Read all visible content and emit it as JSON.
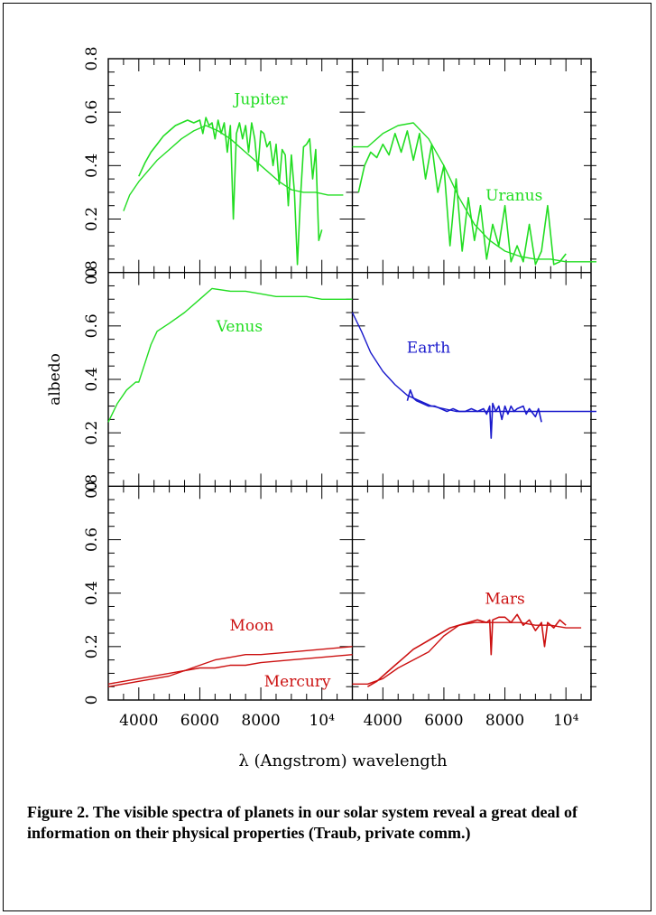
{
  "chart_data": {
    "type": "line",
    "ylabel": "albedo",
    "xlabel": "λ (Angstrom) wavelength",
    "xlim": [
      3000,
      11000
    ],
    "ylim": [
      0,
      0.8
    ],
    "x_tick_labels": [
      "4000",
      "6000",
      "8000",
      "10⁴"
    ],
    "x_ticks": [
      4000,
      6000,
      8000,
      10000
    ],
    "y_tick_labels": [
      "0",
      "0.2",
      "0.4",
      "0.6",
      "0.8"
    ],
    "y_ticks": [
      0,
      0.2,
      0.4,
      0.6,
      0.8
    ],
    "colors": {
      "green": "#22dd22",
      "blue": "#1a1acc",
      "red": "#cc1111"
    },
    "panels": [
      {
        "label": "Jupiter",
        "color": "green",
        "row": 0,
        "col": 0,
        "label_at": [
          8000,
          0.63
        ],
        "series": [
          {
            "x": [
              3500,
              3700,
              4000,
              4300,
              4600,
              5000,
              5400,
              5800,
              6200,
              6600,
              7000,
              7400,
              7800,
              8200,
              8600,
              9000,
              9400,
              9800,
              10200,
              10700
            ],
            "y": [
              0.23,
              0.29,
              0.34,
              0.38,
              0.42,
              0.46,
              0.5,
              0.53,
              0.55,
              0.53,
              0.5,
              0.46,
              0.42,
              0.38,
              0.34,
              0.31,
              0.3,
              0.3,
              0.29,
              0.29
            ]
          },
          {
            "x": [
              4000,
              4200,
              4400,
              4600,
              4800,
              5000,
              5200,
              5400,
              5600,
              5800,
              6000,
              6100,
              6200,
              6300,
              6400,
              6500,
              6600,
              6700,
              6800,
              6900,
              7000,
              7100,
              7200,
              7300,
              7400,
              7500,
              7600,
              7700,
              7800,
              7900,
              8000,
              8100,
              8200,
              8300,
              8400,
              8500,
              8600,
              8700,
              8800,
              8900,
              9000,
              9100,
              9200,
              9300,
              9400,
              9500,
              9600,
              9700,
              9800,
              9900,
              10000
            ],
            "y": [
              0.36,
              0.41,
              0.45,
              0.48,
              0.51,
              0.53,
              0.55,
              0.56,
              0.57,
              0.56,
              0.57,
              0.52,
              0.58,
              0.55,
              0.56,
              0.5,
              0.57,
              0.52,
              0.56,
              0.45,
              0.55,
              0.2,
              0.52,
              0.56,
              0.5,
              0.55,
              0.45,
              0.56,
              0.5,
              0.38,
              0.53,
              0.52,
              0.47,
              0.49,
              0.4,
              0.48,
              0.33,
              0.46,
              0.44,
              0.25,
              0.44,
              0.3,
              0.03,
              0.28,
              0.47,
              0.48,
              0.5,
              0.35,
              0.46,
              0.12,
              0.16
            ]
          }
        ]
      },
      {
        "label": "Uranus",
        "color": "green",
        "row": 0,
        "col": 1,
        "label_at": [
          8300,
          0.27
        ],
        "series": [
          {
            "x": [
              3000,
              3500,
              4000,
              4500,
              5000,
              5500,
              6000,
              6500,
              7000,
              7500,
              8000,
              8500,
              9000,
              9500,
              10000,
              10500,
              11000
            ],
            "y": [
              0.47,
              0.47,
              0.52,
              0.55,
              0.56,
              0.5,
              0.4,
              0.28,
              0.18,
              0.12,
              0.08,
              0.06,
              0.05,
              0.05,
              0.04,
              0.04,
              0.04
            ]
          },
          {
            "x": [
              3200,
              3400,
              3600,
              3800,
              4000,
              4200,
              4400,
              4600,
              4800,
              5000,
              5200,
              5400,
              5600,
              5800,
              6000,
              6200,
              6400,
              6600,
              6800,
              7000,
              7200,
              7400,
              7600,
              7800,
              8000,
              8200,
              8400,
              8600,
              8800,
              9000,
              9200,
              9400,
              9600,
              9800,
              10000
            ],
            "y": [
              0.3,
              0.4,
              0.45,
              0.43,
              0.48,
              0.44,
              0.52,
              0.45,
              0.53,
              0.42,
              0.52,
              0.35,
              0.48,
              0.3,
              0.4,
              0.1,
              0.35,
              0.08,
              0.28,
              0.12,
              0.25,
              0.05,
              0.18,
              0.1,
              0.25,
              0.04,
              0.1,
              0.04,
              0.18,
              0.03,
              0.08,
              0.25,
              0.03,
              0.04,
              0.07
            ]
          }
        ]
      },
      {
        "label": "Venus",
        "color": "green",
        "row": 1,
        "col": 0,
        "label_at": [
          7300,
          0.58
        ],
        "series": [
          {
            "x": [
              3000,
              3300,
              3600,
              3900,
              4000,
              4200,
              4400,
              4600,
              5000,
              5500,
              6000,
              6400,
              7000,
              7500,
              8000,
              8500,
              9000,
              9500,
              10000,
              11000
            ],
            "y": [
              0.24,
              0.31,
              0.36,
              0.39,
              0.39,
              0.46,
              0.53,
              0.58,
              0.61,
              0.65,
              0.7,
              0.74,
              0.73,
              0.73,
              0.72,
              0.71,
              0.71,
              0.71,
              0.7,
              0.7
            ]
          }
        ]
      },
      {
        "label": "Earth",
        "color": "blue",
        "row": 1,
        "col": 1,
        "label_at": [
          5500,
          0.5
        ],
        "series": [
          {
            "x": [
              3000,
              3300,
              3600,
              4000,
              4400,
              4800,
              5200,
              5600,
              6000,
              6400,
              6800,
              7200,
              7600,
              8000,
              8400,
              8800,
              9200,
              9600,
              10000,
              10500,
              11000
            ],
            "y": [
              0.65,
              0.58,
              0.5,
              0.43,
              0.38,
              0.34,
              0.32,
              0.3,
              0.29,
              0.28,
              0.28,
              0.28,
              0.28,
              0.28,
              0.28,
              0.28,
              0.28,
              0.28,
              0.28,
              0.28,
              0.28
            ]
          },
          {
            "x": [
              4800,
              4900,
              5000,
              5100,
              5300,
              5500,
              5700,
              5900,
              6100,
              6300,
              6500,
              6700,
              6900,
              7100,
              7300,
              7400,
              7500,
              7550,
              7600,
              7700,
              7800,
              7900,
              8000,
              8100,
              8200,
              8300,
              8400,
              8600,
              8700,
              8800,
              9000,
              9100,
              9200
            ],
            "y": [
              0.32,
              0.36,
              0.33,
              0.32,
              0.31,
              0.3,
              0.3,
              0.29,
              0.28,
              0.29,
              0.28,
              0.28,
              0.29,
              0.28,
              0.29,
              0.27,
              0.3,
              0.18,
              0.31,
              0.28,
              0.3,
              0.25,
              0.3,
              0.27,
              0.3,
              0.28,
              0.29,
              0.3,
              0.27,
              0.29,
              0.26,
              0.29,
              0.24
            ]
          }
        ]
      },
      {
        "label": "Moon",
        "color": "red",
        "row": 2,
        "col": 0,
        "label_at": [
          7700,
          0.26
        ],
        "series": [
          {
            "x": [
              3000,
              4000,
              5000,
              5500,
              6000,
              6500,
              7000,
              7500,
              8000,
              9000,
              10000,
              11000
            ],
            "y": [
              0.06,
              0.08,
              0.1,
              0.11,
              0.13,
              0.15,
              0.16,
              0.17,
              0.17,
              0.18,
              0.19,
              0.2
            ]
          }
        ]
      },
      {
        "label": "Mercury",
        "color": "red",
        "row": 2,
        "col": 0,
        "label_at": [
          9200,
          0.05
        ],
        "series": [
          {
            "x": [
              3000,
              4000,
              5000,
              5500,
              6000,
              6500,
              7000,
              7500,
              8000,
              9000,
              10000,
              11000
            ],
            "y": [
              0.05,
              0.07,
              0.09,
              0.11,
              0.12,
              0.12,
              0.13,
              0.13,
              0.14,
              0.15,
              0.16,
              0.17
            ]
          }
        ]
      },
      {
        "label": "Mars",
        "color": "red",
        "row": 2,
        "col": 1,
        "label_at": [
          8000,
          0.36
        ],
        "series": [
          {
            "x": [
              3000,
              3500,
              4000,
              4500,
              5000,
              5500,
              6000,
              6500,
              7000,
              7500,
              8000,
              8500,
              9000,
              9500,
              10000,
              10500
            ],
            "y": [
              0.06,
              0.06,
              0.08,
              0.12,
              0.15,
              0.18,
              0.24,
              0.28,
              0.29,
              0.29,
              0.29,
              0.29,
              0.28,
              0.28,
              0.27,
              0.27
            ]
          },
          {
            "x": [
              3500,
              3800,
              4100,
              4400,
              4700,
              5000,
              5300,
              5600,
              5900,
              6200,
              6500,
              6800,
              7100,
              7400,
              7500,
              7550,
              7600,
              7800,
              8000,
              8200,
              8400,
              8600,
              8800,
              9000,
              9200,
              9300,
              9400,
              9600,
              9800,
              10000
            ],
            "y": [
              0.05,
              0.07,
              0.1,
              0.13,
              0.16,
              0.19,
              0.21,
              0.23,
              0.25,
              0.27,
              0.28,
              0.29,
              0.3,
              0.29,
              0.3,
              0.17,
              0.3,
              0.31,
              0.31,
              0.29,
              0.32,
              0.28,
              0.3,
              0.26,
              0.29,
              0.2,
              0.29,
              0.27,
              0.3,
              0.28
            ]
          }
        ]
      }
    ]
  },
  "caption": "Figure 2. The visible spectra of planets in our solar system reveal a great deal of information on their physical properties (Traub, private comm.)"
}
